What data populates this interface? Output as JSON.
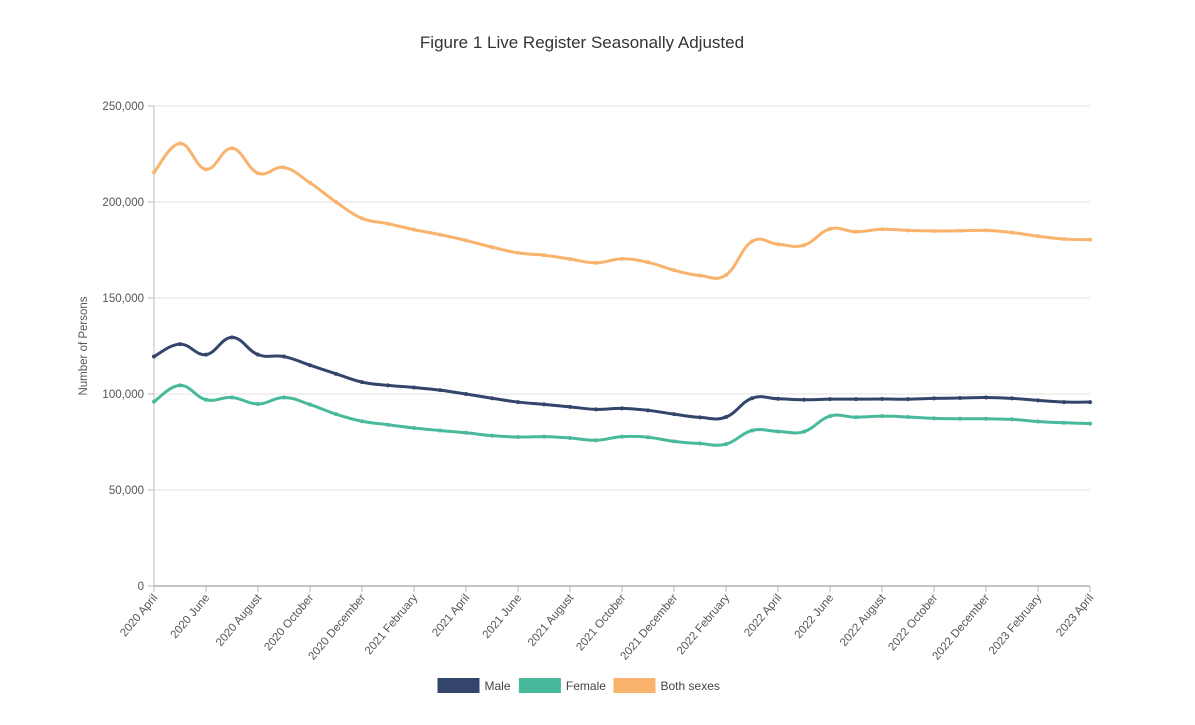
{
  "chart_data": {
    "type": "line",
    "title": "Figure 1 Live Register Seasonally Adjusted",
    "ylabel": "Number of Persons",
    "xlabel": "",
    "ylim": [
      0,
      250000
    ],
    "yticks": [
      0,
      50000,
      100000,
      150000,
      200000,
      250000
    ],
    "ytick_labels": [
      "0",
      "50,000",
      "100,000",
      "150,000",
      "200,000",
      "250,000"
    ],
    "grid": true,
    "legend_position": "bottom",
    "x": [
      "2020 April",
      "2020 May",
      "2020 June",
      "2020 July",
      "2020 August",
      "2020 September",
      "2020 October",
      "2020 November",
      "2020 December",
      "2021 January",
      "2021 February",
      "2021 March",
      "2021 April",
      "2021 May",
      "2021 June",
      "2021 July",
      "2021 August",
      "2021 September",
      "2021 October",
      "2021 November",
      "2021 December",
      "2022 January",
      "2022 February",
      "2022 March",
      "2022 April",
      "2022 May",
      "2022 June",
      "2022 July",
      "2022 August",
      "2022 September",
      "2022 October",
      "2022 November",
      "2022 December",
      "2023 January",
      "2023 February",
      "2023 March",
      "2023 April"
    ],
    "xtick_labels": [
      "2020 April",
      "2020 June",
      "2020 August",
      "2020 October",
      "2020 December",
      "2021 February",
      "2021 April",
      "2021 June",
      "2021 August",
      "2021 October",
      "2021 December",
      "2022 February",
      "2022 April",
      "2022 June",
      "2022 August",
      "2022 October",
      "2022 December",
      "2023 February",
      "2023 April"
    ],
    "series": [
      {
        "name": "Male",
        "color": "#34456b",
        "values": [
          119500,
          126000,
          120500,
          129500,
          120500,
          119500,
          115000,
          110500,
          106200,
          104500,
          103400,
          102000,
          100000,
          97800,
          95800,
          94600,
          93300,
          92000,
          92500,
          91500,
          89500,
          87800,
          88000,
          97800,
          97500,
          97000,
          97300,
          97300,
          97400,
          97300,
          97700,
          97900,
          98200,
          97700,
          96700,
          95800,
          95800
        ]
      },
      {
        "name": "Female",
        "color": "#48b99a",
        "values": [
          96000,
          104500,
          97000,
          98200,
          94800,
          98200,
          94500,
          89500,
          85800,
          84000,
          82300,
          81000,
          79800,
          78300,
          77600,
          77800,
          77100,
          75900,
          77800,
          77500,
          75300,
          74200,
          73900,
          81000,
          80500,
          80400,
          88500,
          87900,
          88500,
          88000,
          87300,
          87100,
          87100,
          86800,
          85700,
          85000,
          84600
        ]
      },
      {
        "name": "Both sexes",
        "color": "#f9b36d",
        "values": [
          215500,
          230500,
          217000,
          228000,
          215000,
          218000,
          210000,
          200000,
          191500,
          188700,
          185600,
          183000,
          180000,
          176500,
          173500,
          172300,
          170300,
          168300,
          170400,
          168600,
          164500,
          161700,
          162000,
          179500,
          178000,
          177500,
          186000,
          184500,
          185800,
          185200,
          184900,
          185000,
          185200,
          184100,
          182200,
          180700,
          180400
        ]
      }
    ]
  }
}
